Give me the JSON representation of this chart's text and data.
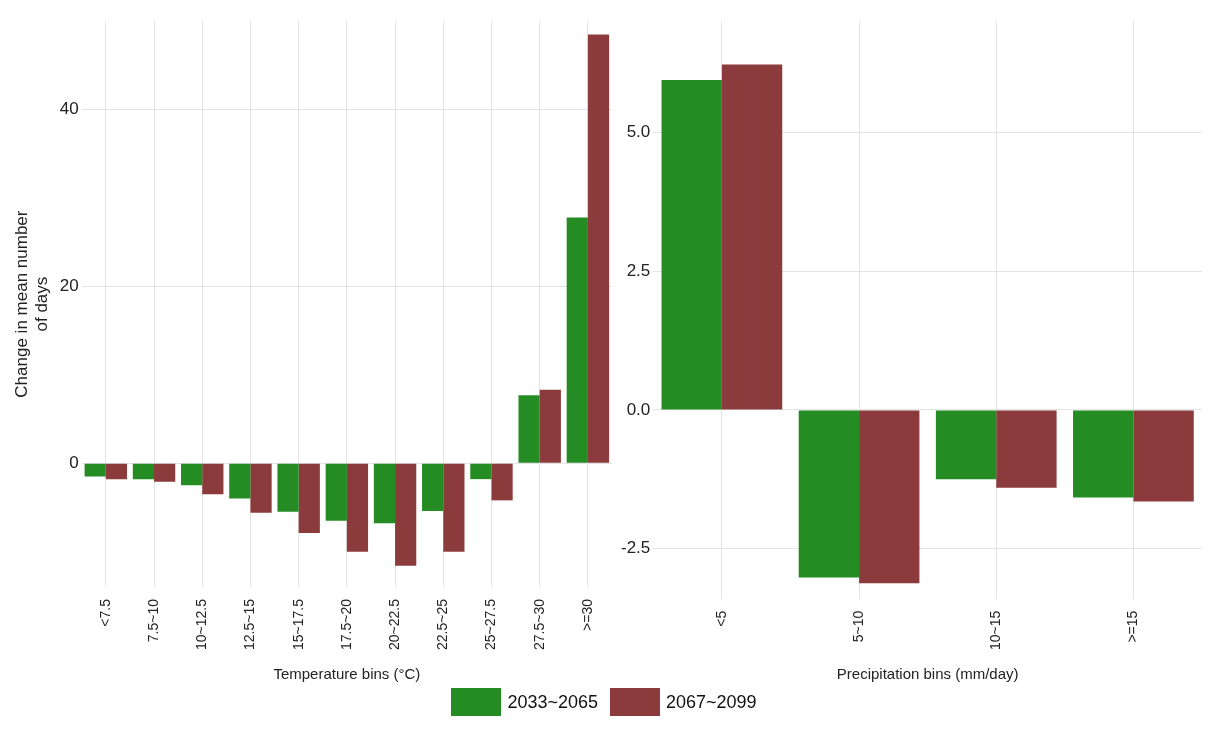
{
  "chart_data": [
    {
      "type": "bar",
      "ylabel": "Change in mean number of days",
      "xlabel": "Temperature bins (°C)",
      "categories": [
        "<7.5",
        "7.5~10",
        "10~12.5",
        "12.5~15",
        "15~17.5",
        "17.5~20",
        "20~22.5",
        "22.5~25",
        "25~27.5",
        "27.5~30",
        ">=30"
      ],
      "series": [
        {
          "name": "2033~2065",
          "color": "#258b23",
          "values": [
            -1.5,
            -1.8,
            -2.5,
            -4.0,
            -5.5,
            -6.5,
            -6.8,
            -5.4,
            -1.8,
            7.7,
            27.8
          ]
        },
        {
          "name": "2067~2099",
          "color": "#8b3b3b",
          "values": [
            -1.8,
            -2.1,
            -3.5,
            -5.6,
            -7.9,
            -10.0,
            -11.6,
            -10.0,
            -4.2,
            8.3,
            48.5
          ]
        }
      ],
      "ylim": [
        -14,
        50
      ],
      "yticks": [
        0,
        20,
        40
      ],
      "grid": true,
      "legend": "bottom"
    },
    {
      "type": "bar",
      "xlabel": "Precipitation bins (mm/day)",
      "categories": [
        "<5",
        "5~10",
        "10~15",
        ">=15"
      ],
      "series": [
        {
          "color": "#258b23",
          "values": [
            5.94,
            -3.02,
            -1.25,
            -1.58
          ]
        },
        {
          "color": "#8b3b3b",
          "values": [
            6.22,
            -3.12,
            -1.4,
            -1.65
          ]
        }
      ],
      "ylim": [
        -3.4,
        7
      ],
      "yticks": [
        {
          "value": -2.5,
          "label": "-2.5"
        },
        {
          "value": 0,
          "label": "0.0"
        },
        {
          "value": 2.5,
          "label": "2.5"
        },
        {
          "value": 5,
          "label": "5.0"
        }
      ],
      "grid": true
    }
  ]
}
